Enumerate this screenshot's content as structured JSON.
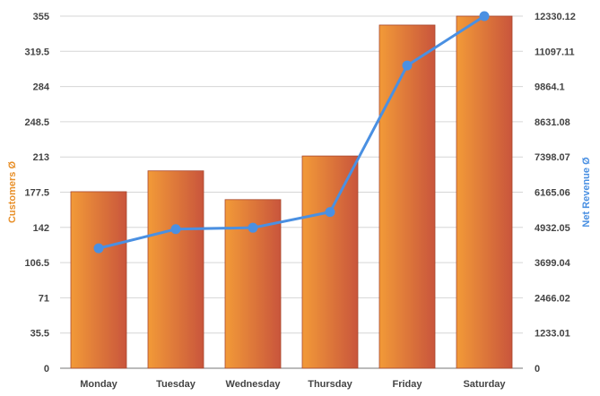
{
  "chart_data": {
    "type": "bar",
    "categories": [
      "Monday",
      "Tuesday",
      "Wednesday",
      "Thursday",
      "Friday",
      "Saturday"
    ],
    "series": [
      {
        "name": "Customers Ø",
        "kind": "bar",
        "axis": "left",
        "values": [
          178,
          199,
          170,
          214,
          346,
          355
        ],
        "color": "#d65a3a"
      },
      {
        "name": "Net Revenue Ø",
        "kind": "line",
        "axis": "right",
        "values": [
          4200,
          4870,
          4920,
          5470,
          10600,
          12330.12
        ],
        "color": "#4a90e2"
      }
    ],
    "y_left": {
      "label": "Customers Ø",
      "ylim": [
        0,
        355
      ],
      "ticks": [
        "0",
        "35.5",
        "71",
        "106.5",
        "142",
        "177.5",
        "213",
        "248.5",
        "284",
        "319.5",
        "355"
      ]
    },
    "y_right": {
      "label": "Net Revenue Ø",
      "ylim": [
        0,
        12330.12
      ],
      "ticks": [
        "0",
        "1233.01",
        "2466.02",
        "3699.04",
        "4932.05",
        "6165.06",
        "7398.07",
        "8631.08",
        "9864.1",
        "11097.11",
        "12330.12"
      ]
    },
    "colors": {
      "bar_light": "#f29a38",
      "bar_dark": "#c9553c",
      "line": "#4a90e2",
      "left_axis_title": "#e8902a",
      "right_axis_title": "#4a90e2"
    },
    "grid": true
  }
}
